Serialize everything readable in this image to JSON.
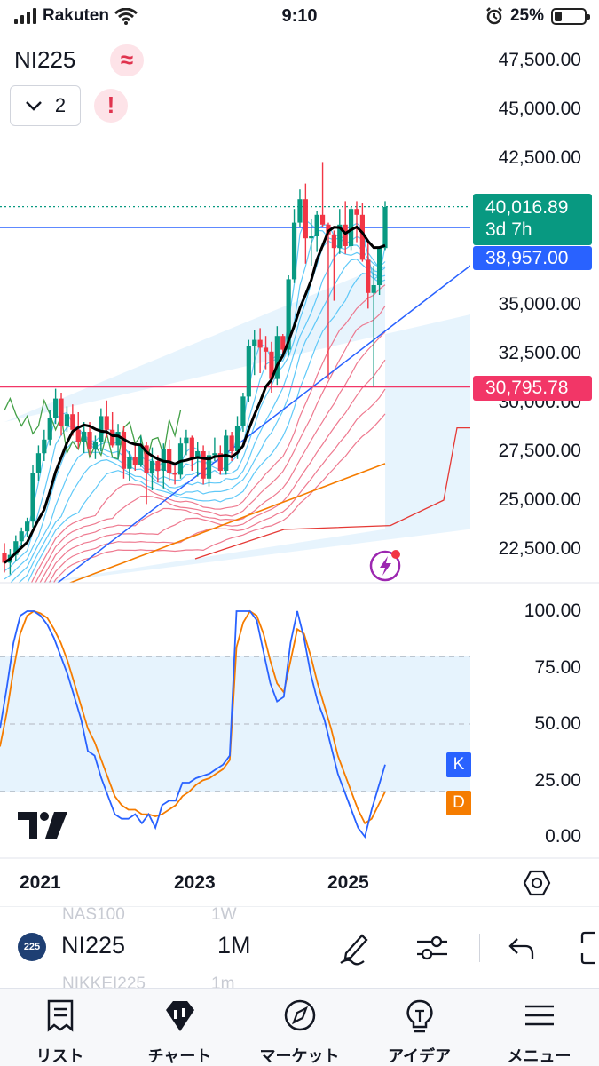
{
  "status_bar": {
    "carrier": "Rakuten",
    "time": "9:10",
    "battery": "25%",
    "battery_level": 0.25
  },
  "header": {
    "symbol": "NI225",
    "indicator_count": "2"
  },
  "price_axis": {
    "labels": [
      "47,500.00",
      "45,000.00",
      "42,500.00",
      "35,000.00",
      "32,500.00",
      "30,000.00",
      "27,500.00",
      "25,000.00",
      "22,500.00"
    ]
  },
  "price_tags": {
    "last_price": "40,016.89",
    "countdown": "3d 7h",
    "blue_line": "38,957.00",
    "pink_line": "30,795.78"
  },
  "oscillator_axis": {
    "labels": [
      "100.00",
      "75.00",
      "50.00",
      "25.00",
      "0.00"
    ],
    "k_tag": "K",
    "d_tag": "D"
  },
  "time_axis": {
    "labels": [
      "2021",
      "2023",
      "2025"
    ]
  },
  "toolbar": {
    "symbol_badge": "225",
    "symbol": "NI225",
    "interval": "1M",
    "ghost_above_symbol": "NAS100",
    "ghost_above_interval": "1W",
    "ghost_below_symbol": "NIKKEI225",
    "ghost_below_interval": "1m"
  },
  "nav": {
    "items": [
      {
        "label": "リスト",
        "icon": "list-icon"
      },
      {
        "label": "チャート",
        "icon": "chart-icon"
      },
      {
        "label": "マーケット",
        "icon": "compass-icon"
      },
      {
        "label": "アイデア",
        "icon": "lightbulb-icon"
      },
      {
        "label": "メニュー",
        "icon": "menu-icon"
      }
    ]
  },
  "colors": {
    "up": "#089981",
    "down": "#f23645",
    "blue": "#2962ff",
    "pink": "#f23667",
    "k_line": "#2962ff",
    "d_line": "#f57c00"
  },
  "chart_data": {
    "type": "candlestick",
    "interval": "1M",
    "x_ticks": [
      "2021",
      "2023",
      "2025"
    ],
    "ylim": [
      21000,
      48500
    ],
    "y_ticks": [
      22500,
      25000,
      27500,
      30000,
      32500,
      35000,
      42500,
      45000,
      47500
    ],
    "last_price": 40016.89,
    "horizontal_lines": [
      38957.0,
      30795.78
    ],
    "candles_note": "monthly OHLC values estimated from the chart, in index points",
    "ohlc": [
      [
        22300,
        22800,
        21300,
        21800
      ],
      [
        21800,
        22500,
        21200,
        22200
      ],
      [
        22200,
        23200,
        21900,
        22900
      ],
      [
        22900,
        23600,
        22600,
        23400
      ],
      [
        23400,
        24100,
        23100,
        23900
      ],
      [
        23900,
        26800,
        23600,
        26400
      ],
      [
        26400,
        27800,
        26000,
        27400
      ],
      [
        27400,
        28600,
        27000,
        28100
      ],
      [
        28100,
        29600,
        27800,
        29200
      ],
      [
        29200,
        30700,
        28900,
        30200
      ],
      [
        30200,
        30500,
        28300,
        28800
      ],
      [
        28800,
        29800,
        28500,
        29400
      ],
      [
        29400,
        29900,
        28300,
        28600
      ],
      [
        28600,
        29500,
        27600,
        28000
      ],
      [
        28000,
        29000,
        27400,
        28500
      ],
      [
        28500,
        29000,
        27300,
        27600
      ],
      [
        27600,
        28300,
        27100,
        28000
      ],
      [
        28000,
        29700,
        27500,
        29300
      ],
      [
        29300,
        30100,
        28200,
        28600
      ],
      [
        28600,
        29500,
        27700,
        27800
      ],
      [
        27800,
        28900,
        27100,
        28500
      ],
      [
        28500,
        28800,
        26100,
        26600
      ],
      [
        26600,
        27500,
        26000,
        27200
      ],
      [
        27200,
        27800,
        26500,
        26800
      ],
      [
        26800,
        28300,
        26700,
        27800
      ],
      [
        27800,
        28000,
        24800,
        26400
      ],
      [
        26400,
        27700,
        25500,
        27000
      ],
      [
        27000,
        27300,
        25900,
        26500
      ],
      [
        26500,
        27900,
        25600,
        27600
      ],
      [
        27600,
        28100,
        26000,
        26400
      ],
      [
        26400,
        26800,
        25800,
        26300
      ],
      [
        26300,
        28200,
        26100,
        27900
      ],
      [
        27900,
        28600,
        27300,
        28200
      ],
      [
        28200,
        28300,
        26500,
        27100
      ],
      [
        27100,
        28000,
        26200,
        27500
      ],
      [
        27500,
        27800,
        25800,
        26100
      ],
      [
        26100,
        27500,
        25700,
        27300
      ],
      [
        27300,
        28200,
        27000,
        27400
      ],
      [
        27400,
        27800,
        26300,
        26500
      ],
      [
        26500,
        28600,
        26300,
        28300
      ],
      [
        28300,
        28500,
        27000,
        27500
      ],
      [
        27500,
        29300,
        27100,
        28800
      ],
      [
        28800,
        30500,
        28500,
        30300
      ],
      [
        30300,
        33200,
        30000,
        32900
      ],
      [
        32900,
        33700,
        31400,
        33200
      ],
      [
        33200,
        33800,
        31500,
        32800
      ],
      [
        32800,
        33400,
        31700,
        32600
      ],
      [
        32600,
        33100,
        30500,
        31200
      ],
      [
        31200,
        33900,
        30900,
        33400
      ],
      [
        33400,
        33500,
        32300,
        32700
      ],
      [
        32700,
        36500,
        32400,
        36300
      ],
      [
        36300,
        39900,
        36100,
        39200
      ],
      [
        39200,
        40900,
        39000,
        40400
      ],
      [
        40400,
        41200,
        37100,
        38400
      ],
      [
        38400,
        39400,
        37000,
        38500
      ],
      [
        38500,
        39800,
        37700,
        39600
      ],
      [
        39600,
        42300,
        39000,
        39100
      ],
      [
        39100,
        39200,
        31200,
        38600
      ],
      [
        38600,
        38800,
        35200,
        37900
      ],
      [
        37900,
        39900,
        37600,
        39100
      ],
      [
        39100,
        40300,
        37600,
        38000
      ],
      [
        38000,
        40000,
        37800,
        39900
      ],
      [
        39900,
        40300,
        38200,
        39600
      ],
      [
        39600,
        40200,
        37200,
        37300
      ],
      [
        37300,
        38200,
        34800,
        35600
      ],
      [
        35600,
        37000,
        30800,
        36000
      ],
      [
        36000,
        38000,
        35500,
        37900
      ],
      [
        37900,
        40300,
        37800,
        40000
      ]
    ],
    "oscillator": {
      "type": "line",
      "name": "Stochastic",
      "ylim": [
        -5,
        105
      ],
      "y_ticks": [
        0,
        25,
        50,
        75,
        100
      ],
      "bands": [
        20,
        80
      ],
      "k": [
        48,
        66,
        86,
        98,
        100,
        100,
        98,
        94,
        88,
        80,
        72,
        62,
        52,
        38,
        36,
        26,
        18,
        10,
        8,
        8,
        10,
        6,
        10,
        4,
        14,
        16,
        16,
        24,
        24,
        26,
        27,
        28,
        30,
        32,
        36,
        100,
        100,
        100,
        96,
        82,
        68,
        60,
        62,
        86,
        100,
        88,
        72,
        60,
        52,
        40,
        28,
        20,
        12,
        4,
        0,
        12,
        22,
        32
      ],
      "d": [
        40,
        55,
        74,
        90,
        98,
        100,
        99,
        97,
        92,
        86,
        78,
        68,
        58,
        48,
        42,
        34,
        26,
        18,
        14,
        12,
        12,
        10,
        10,
        9,
        10,
        12,
        14,
        18,
        20,
        23,
        25,
        26,
        28,
        30,
        34,
        84,
        95,
        100,
        98,
        90,
        78,
        68,
        64,
        78,
        92,
        90,
        80,
        68,
        58,
        48,
        36,
        28,
        20,
        12,
        6,
        8,
        14,
        20
      ]
    }
  }
}
